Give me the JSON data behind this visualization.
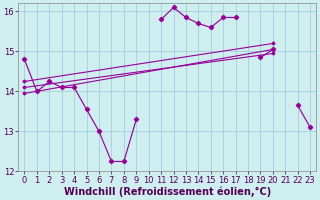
{
  "background_color": "#ceeef0",
  "grid_color": "#aad4da",
  "line_color": "#990099",
  "xlabel": "Windchill (Refroidissement éolien,°C)",
  "xlabel_fontsize": 7,
  "tick_fontsize": 6,
  "xlim": [
    -0.5,
    23.5
  ],
  "ylim": [
    12,
    16.2
  ],
  "yticks": [
    12,
    13,
    14,
    15,
    16
  ],
  "xticks": [
    0,
    1,
    2,
    3,
    4,
    5,
    6,
    7,
    8,
    9,
    10,
    11,
    12,
    13,
    14,
    15,
    16,
    17,
    18,
    19,
    20,
    21,
    22,
    23
  ],
  "main_x": [
    0,
    1,
    2,
    3,
    4,
    5,
    6,
    7,
    8,
    9,
    10,
    11,
    12,
    13,
    14,
    15,
    16,
    17,
    18,
    19,
    20,
    21,
    22,
    23
  ],
  "main_y": [
    14.8,
    14.0,
    14.25,
    14.1,
    14.1,
    13.55,
    13.0,
    12.25,
    12.25,
    13.3,
    null,
    15.8,
    16.1,
    15.85,
    15.7,
    15.6,
    15.85,
    15.85,
    null,
    14.85,
    15.05,
    null,
    13.65,
    13.1
  ],
  "line1_x": [
    0,
    20
  ],
  "line1_y": [
    13.95,
    15.05
  ],
  "line2_x": [
    0,
    20
  ],
  "line2_y": [
    14.1,
    14.95
  ],
  "line3_x": [
    0,
    20
  ],
  "line3_y": [
    14.25,
    15.2
  ]
}
